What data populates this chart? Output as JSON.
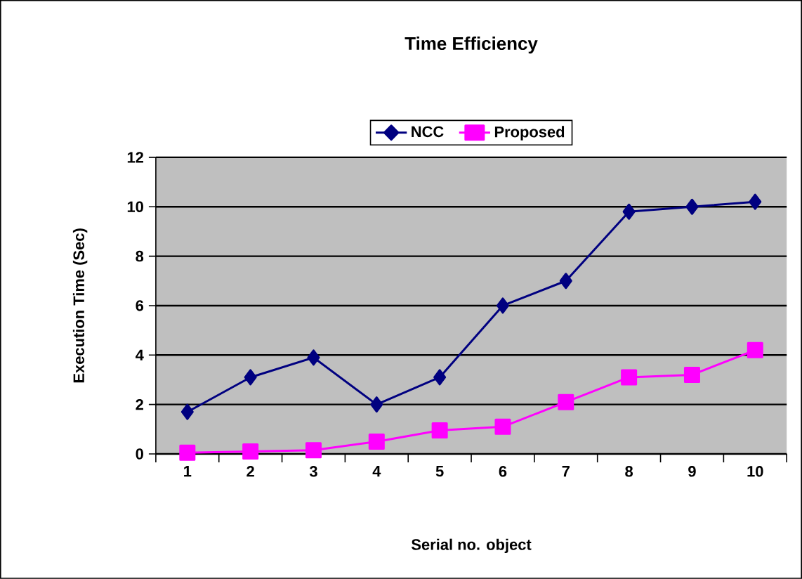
{
  "chart_data": {
    "type": "line",
    "title": "Time Efficiency",
    "xlabel": "Serial no. object",
    "ylabel": "Execution Time (Sec)",
    "categories": [
      "1",
      "2",
      "3",
      "4",
      "5",
      "6",
      "7",
      "8",
      "9",
      "10"
    ],
    "series": [
      {
        "name": "NCC",
        "color": "#000080",
        "marker": "diamond",
        "values": [
          1.7,
          3.1,
          3.9,
          2.0,
          3.1,
          6.0,
          7.0,
          9.8,
          10.0,
          10.2
        ]
      },
      {
        "name": "Proposed",
        "color": "#ff00ff",
        "marker": "square",
        "values": [
          0.05,
          0.1,
          0.15,
          0.5,
          0.95,
          1.1,
          2.1,
          3.1,
          3.2,
          4.2
        ]
      }
    ],
    "ylim": [
      0,
      12
    ],
    "yticks": [
      0,
      2,
      4,
      6,
      8,
      10,
      12
    ],
    "grid": "y",
    "legend": "top"
  }
}
